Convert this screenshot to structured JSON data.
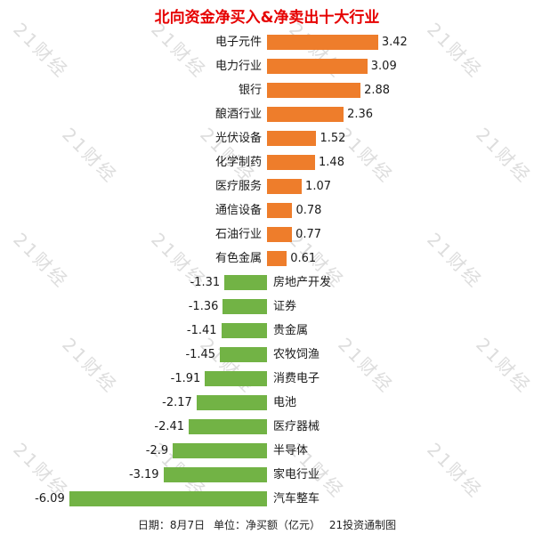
{
  "title": "北向资金净买入&净卖出十大行业",
  "watermark": {
    "text": "21财经"
  },
  "footer": {
    "date": "日期：8月7日",
    "unit": "单位：净买额（亿元）",
    "credit": "21投资通制图"
  },
  "chart_data": {
    "type": "bar",
    "orientation": "horizontal-diverging",
    "title": "北向资金净买入&净卖出十大行业",
    "categories": [
      "电子元件",
      "电力行业",
      "银行",
      "酿酒行业",
      "光伏设备",
      "化学制药",
      "医疗服务",
      "通信设备",
      "石油行业",
      "有色金属",
      "房地产开发",
      "证券",
      "贵金属",
      "农牧饲渔",
      "消费电子",
      "电池",
      "医疗器械",
      "半导体",
      "家电行业",
      "汽车整车"
    ],
    "values": [
      3.42,
      3.09,
      2.88,
      2.36,
      1.52,
      1.48,
      1.07,
      0.78,
      0.77,
      0.61,
      -1.31,
      -1.36,
      -1.41,
      -1.45,
      -1.91,
      -2.17,
      -2.41,
      -2.9,
      -3.19,
      -6.09
    ],
    "unit": "亿元",
    "xlim": [
      -6.5,
      3.8
    ],
    "grid": false,
    "legend": "none",
    "data_labels": true,
    "colors": {
      "positive": "#ee7d2b",
      "negative": "#72b345",
      "title": "#e60000"
    }
  }
}
